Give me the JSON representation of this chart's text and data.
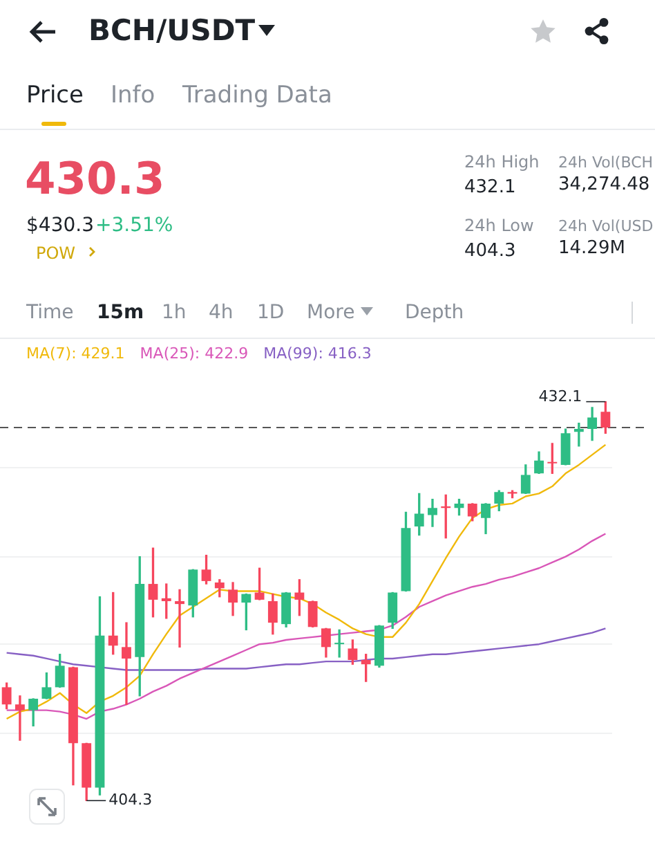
{
  "chart_data": {
    "type": "candlestick",
    "title": "BCH/USDT",
    "categories": [
      null,
      null,
      null,
      null,
      null,
      null,
      null,
      null,
      null,
      null,
      null,
      null,
      null,
      null,
      null,
      null,
      null,
      null,
      null,
      null,
      null,
      null,
      null,
      null,
      null,
      null,
      null,
      null,
      null,
      null,
      null,
      null,
      null,
      null,
      null,
      null,
      null,
      null,
      null,
      null,
      null,
      null,
      null,
      null,
      null,
      null
    ],
    "ohlc": [
      [
        412.2,
        412.5,
        410.7,
        411.0
      ],
      [
        411.0,
        411.6,
        408.5,
        410.6
      ],
      [
        410.6,
        411.4,
        409.5,
        411.4
      ],
      [
        411.4,
        413.2,
        411.4,
        412.2
      ],
      [
        412.2,
        414.5,
        412.2,
        413.7
      ],
      [
        413.6,
        413.6,
        405.4,
        408.3
      ],
      [
        408.3,
        408.3,
        404.3,
        405.2
      ],
      [
        405.2,
        418.5,
        404.7,
        415.8
      ],
      [
        415.8,
        418.8,
        414.5,
        415.1
      ],
      [
        415.0,
        416.7,
        411.0,
        414.2
      ],
      [
        414.3,
        421.3,
        411.6,
        419.4
      ],
      [
        419.4,
        421.9,
        417.1,
        418.3
      ],
      [
        418.4,
        419.4,
        417.0,
        418.2
      ],
      [
        418.2,
        419.0,
        415.0,
        418.0
      ],
      [
        417.9,
        420.4,
        417.1,
        420.4
      ],
      [
        420.4,
        421.4,
        419.4,
        419.6
      ],
      [
        419.5,
        419.7,
        418.5,
        419.1
      ],
      [
        419.0,
        419.5,
        417.2,
        418.1
      ],
      [
        418.1,
        418.7,
        416.2,
        418.7
      ],
      [
        418.8,
        420.5,
        418.3,
        418.3
      ],
      [
        418.2,
        418.7,
        415.9,
        416.7
      ],
      [
        416.6,
        418.8,
        416.4,
        418.8
      ],
      [
        418.8,
        419.7,
        417.2,
        418.3
      ],
      [
        418.2,
        418.2,
        416.4,
        416.4
      ],
      [
        416.3,
        416.3,
        414.3,
        415.0
      ],
      [
        415.2,
        416.2,
        414.3,
        415.3
      ],
      [
        414.9,
        415.5,
        413.8,
        414.1
      ],
      [
        414.1,
        414.5,
        412.6,
        413.8
      ],
      [
        413.7,
        416.5,
        413.6,
        416.5
      ],
      [
        416.7,
        418.8,
        416.3,
        418.8
      ],
      [
        418.9,
        424.4,
        418.9,
        423.3
      ],
      [
        423.4,
        425.7,
        422.8,
        424.3
      ],
      [
        424.2,
        425.3,
        423.4,
        424.7
      ],
      [
        424.8,
        425.6,
        422.6,
        424.7
      ],
      [
        424.7,
        425.3,
        424.2,
        425.0
      ],
      [
        425.0,
        425.0,
        423.8,
        424.1
      ],
      [
        424.0,
        425.0,
        422.9,
        425.0
      ],
      [
        425.0,
        425.9,
        424.5,
        425.8
      ],
      [
        425.8,
        425.9,
        425.4,
        425.7
      ],
      [
        425.7,
        427.7,
        425.7,
        427.0
      ],
      [
        427.1,
        428.6,
        427.1,
        428.0
      ],
      [
        427.9,
        429.2,
        427.1,
        427.8
      ],
      [
        427.7,
        430.2,
        427.7,
        429.9
      ],
      [
        430.0,
        430.6,
        429.0,
        430.2
      ],
      [
        430.2,
        431.7,
        429.4,
        431.0
      ],
      [
        431.4,
        432.1,
        429.9,
        430.3
      ]
    ],
    "colors": [
      "#f6465d",
      "#f6465d",
      "#2ebd85",
      "#2ebd85",
      "#2ebd85",
      "#f6465d",
      "#f6465d",
      "#2ebd85",
      "#f6465d",
      "#f6465d",
      "#2ebd85",
      "#f6465d",
      "#f6465d",
      "#f6465d",
      "#2ebd85",
      "#f6465d",
      "#f6465d",
      "#f6465d",
      "#2ebd85",
      "#f6465d",
      "#f6465d",
      "#2ebd85",
      "#f6465d",
      "#f6465d",
      "#f6465d",
      "#2ebd85",
      "#f6465d",
      "#f6465d",
      "#2ebd85",
      "#2ebd85",
      "#2ebd85",
      "#2ebd85",
      "#2ebd85",
      "#f6465d",
      "#2ebd85",
      "#f6465d",
      "#2ebd85",
      "#2ebd85",
      "#f6465d",
      "#2ebd85",
      "#2ebd85",
      "#f6465d",
      "#2ebd85",
      "#2ebd85",
      "#2ebd85",
      "#f6465d"
    ],
    "series": [
      {
        "type": "line",
        "name": "MA(7): 429.1",
        "color": "#f0b90b",
        "values": [
          410.0,
          410.5,
          410.7,
          411.2,
          411.8,
          411.0,
          410.4,
          411.2,
          411.6,
          412.2,
          413.0,
          414.5,
          415.9,
          417.2,
          417.8,
          418.4,
          419.0,
          418.9,
          418.9,
          418.9,
          418.7,
          418.5,
          418.4,
          418.0,
          417.4,
          416.9,
          416.3,
          415.9,
          415.7,
          415.7,
          416.7,
          418.0,
          419.6,
          421.2,
          422.7,
          424.0,
          424.6,
          424.9,
          425.0,
          425.5,
          425.7,
          426.2,
          427.1,
          427.7,
          428.4,
          429.1
        ]
      },
      {
        "type": "line",
        "name": "MA(25): 422.9",
        "color": "#d957b8",
        "values": [
          410.6,
          410.6,
          410.6,
          410.6,
          410.5,
          410.3,
          410.0,
          410.5,
          410.7,
          411.0,
          411.4,
          411.9,
          412.3,
          412.8,
          413.2,
          413.6,
          414.0,
          414.4,
          414.8,
          415.2,
          415.3,
          415.5,
          415.6,
          415.7,
          415.8,
          415.9,
          416.0,
          416.1,
          416.2,
          416.5,
          417.1,
          417.8,
          418.2,
          418.6,
          418.9,
          419.2,
          419.4,
          419.7,
          419.9,
          420.2,
          420.5,
          420.9,
          421.3,
          421.8,
          422.4,
          422.9
        ]
      },
      {
        "type": "line",
        "name": "MA(99): 416.3",
        "color": "#8760c4",
        "values": [
          414.6,
          414.5,
          414.4,
          414.2,
          414.0,
          413.8,
          413.7,
          413.6,
          413.5,
          413.4,
          413.4,
          413.4,
          413.4,
          413.4,
          413.4,
          413.5,
          413.5,
          413.5,
          413.5,
          413.6,
          413.7,
          413.8,
          413.8,
          413.9,
          414.0,
          414.0,
          414.0,
          414.1,
          414.2,
          414.2,
          414.3,
          414.4,
          414.5,
          414.5,
          414.6,
          414.7,
          414.8,
          414.9,
          415.0,
          415.1,
          415.2,
          415.4,
          415.6,
          415.8,
          416.0,
          416.3
        ]
      }
    ],
    "ref_lines": [
      {
        "axis": "y",
        "value": 430.3,
        "color": "#555555",
        "line_style": "dashed"
      }
    ],
    "yticks": [
      {
        "value": 409.0,
        "label": null
      },
      {
        "value": 415.2,
        "label": null
      },
      {
        "value": 421.3,
        "label": null
      },
      {
        "value": 427.5,
        "label": null
      }
    ],
    "grid": "y",
    "legend": "top left",
    "annotations": [
      "Price",
      "Info",
      "Trading Data",
      "430.3",
      "$430.3",
      "+3.51%",
      "POW",
      "24h High",
      "432.1",
      "24h Vol(BCH",
      "34,274.48",
      "24h Low",
      "404.3",
      "24h Vol(USD",
      "14.29M",
      "Time",
      "15m",
      "1h",
      "4h",
      "1D",
      "More",
      "Depth",
      "432.1",
      "404.3"
    ]
  }
}
